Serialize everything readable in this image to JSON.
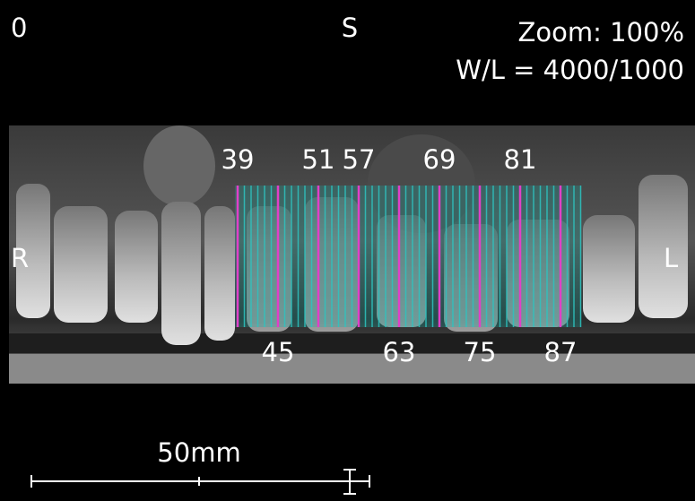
{
  "corner_label": "0",
  "orientation_top": "S",
  "zoom": "Zoom: 100%",
  "window_level": "W/L = 4000/1000",
  "side_left": "R",
  "side_right": "L",
  "upper_slice_labels": [
    "39",
    "51",
    "57",
    "69",
    "81"
  ],
  "lower_slice_labels": [
    "45",
    "63",
    "75",
    "87"
  ],
  "scale_label": "50mm"
}
